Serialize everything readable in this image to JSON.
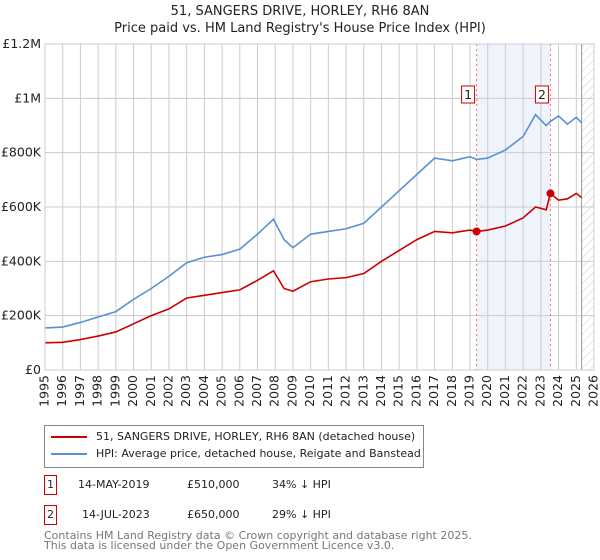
{
  "title": "51, SANGERS DRIVE, HORLEY, RH6 8AN",
  "subtitle": "Price paid vs. HM Land Registry's House Price Index (HPI)",
  "chart_data": {
    "type": "line",
    "xlim": [
      1995,
      2026
    ],
    "ylim": [
      0,
      1200000
    ],
    "x_ticks": [
      "1995",
      "1996",
      "1997",
      "1998",
      "1999",
      "2000",
      "2001",
      "2002",
      "2003",
      "2004",
      "2005",
      "2006",
      "2007",
      "2008",
      "2009",
      "2010",
      "2011",
      "2012",
      "2013",
      "2014",
      "2015",
      "2016",
      "2017",
      "2018",
      "2019",
      "2020",
      "2021",
      "2022",
      "2023",
      "2024",
      "2025",
      "2026"
    ],
    "y_ticks": [
      {
        "v": 0,
        "label": "£0"
      },
      {
        "v": 200000,
        "label": "£200K"
      },
      {
        "v": 400000,
        "label": "£400K"
      },
      {
        "v": 600000,
        "label": "£600K"
      },
      {
        "v": 800000,
        "label": "£800K"
      },
      {
        "v": 1000000,
        "label": "£1M"
      },
      {
        "v": 1200000,
        "label": "£1.2M"
      }
    ],
    "grid": true,
    "shaded_range": [
      2019.37,
      2023.54
    ],
    "forecast_hatch_from": 2025.3,
    "series": [
      {
        "name": "51, SANGERS DRIVE, HORLEY, RH6 8AN (detached house)",
        "color": "#cc0000",
        "x": [
          1995,
          1996,
          1997,
          1998,
          1999,
          2000,
          2001,
          2002,
          2003,
          2004,
          2005,
          2006,
          2007,
          2007.9,
          2008.5,
          2009,
          2010,
          2011,
          2012,
          2013,
          2014,
          2015,
          2016,
          2017,
          2018,
          2019,
          2019.37,
          2020,
          2021,
          2022,
          2022.7,
          2023.3,
          2023.54,
          2024,
          2024.5,
          2025,
          2025.3
        ],
        "y": [
          100000,
          102000,
          112000,
          125000,
          140000,
          170000,
          200000,
          225000,
          265000,
          275000,
          285000,
          295000,
          330000,
          365000,
          300000,
          290000,
          325000,
          335000,
          340000,
          355000,
          400000,
          440000,
          480000,
          510000,
          505000,
          515000,
          510000,
          515000,
          530000,
          560000,
          600000,
          590000,
          650000,
          625000,
          630000,
          650000,
          635000
        ]
      },
      {
        "name": "HPI: Average price, detached house, Reigate and Banstead",
        "color": "#5b8fd0",
        "x": [
          1995,
          1996,
          1997,
          1998,
          1999,
          2000,
          2001,
          2002,
          2003,
          2004,
          2005,
          2006,
          2007,
          2007.9,
          2008.5,
          2009,
          2010,
          2011,
          2012,
          2013,
          2014,
          2015,
          2016,
          2017,
          2018,
          2019,
          2019.37,
          2020,
          2021,
          2022,
          2022.7,
          2023.3,
          2023.54,
          2024,
          2024.5,
          2025,
          2025.3
        ],
        "y": [
          155000,
          158000,
          175000,
          195000,
          215000,
          260000,
          300000,
          345000,
          395000,
          415000,
          425000,
          445000,
          500000,
          555000,
          480000,
          450000,
          500000,
          510000,
          520000,
          540000,
          600000,
          660000,
          720000,
          780000,
          770000,
          785000,
          775000,
          780000,
          810000,
          860000,
          940000,
          900000,
          915000,
          935000,
          905000,
          930000,
          910000
        ]
      }
    ],
    "markers": [
      {
        "label": "1",
        "x": 2019.37,
        "y": 510000
      },
      {
        "label": "2",
        "x": 2023.54,
        "y": 650000
      }
    ]
  },
  "legend": {
    "items": [
      "51, SANGERS DRIVE, HORLEY, RH6 8AN (detached house)",
      "HPI: Average price, detached house, Reigate and Banstead"
    ]
  },
  "transactions": [
    {
      "num": "1",
      "date": "14-MAY-2019",
      "price": "£510,000",
      "hpi": "34% ↓ HPI"
    },
    {
      "num": "2",
      "date": "14-JUL-2023",
      "price": "£650,000",
      "hpi": "29% ↓ HPI"
    }
  ],
  "footer": {
    "line1": "Contains HM Land Registry data © Crown copyright and database right 2025.",
    "line2": "This data is licensed under the Open Government Licence v3.0."
  }
}
